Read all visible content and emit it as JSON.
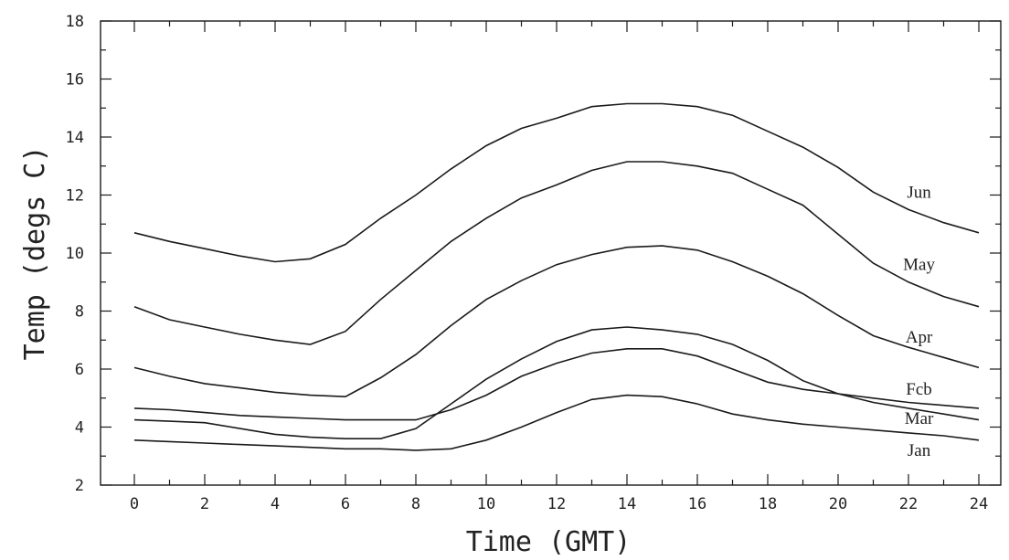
{
  "chart_data": {
    "type": "line",
    "xlabel": "Time (GMT)",
    "ylabel": "Temp (degs C)",
    "xlim": [
      -1,
      24.5
    ],
    "ylim": [
      2,
      18
    ],
    "xticks": [
      0,
      2,
      4,
      6,
      8,
      10,
      12,
      14,
      16,
      18,
      20,
      22,
      24
    ],
    "yticks": [
      2,
      4,
      6,
      8,
      10,
      12,
      14,
      16,
      18
    ],
    "grid": false,
    "x": [
      0,
      1,
      2,
      3,
      4,
      5,
      6,
      7,
      8,
      9,
      10,
      11,
      12,
      13,
      14,
      15,
      16,
      17,
      18,
      19,
      20,
      21,
      22,
      23,
      24
    ],
    "series": [
      {
        "name": "Jun",
        "values": [
          10.7,
          10.4,
          10.15,
          9.9,
          9.7,
          9.8,
          10.3,
          11.2,
          12.0,
          12.9,
          13.7,
          14.3,
          14.65,
          15.05,
          15.15,
          15.15,
          15.05,
          14.75,
          14.2,
          13.65,
          12.95,
          12.1,
          11.5,
          11.05,
          10.7
        ]
      },
      {
        "name": "May",
        "values": [
          8.15,
          7.7,
          7.45,
          7.2,
          7.0,
          6.85,
          7.3,
          8.4,
          9.4,
          10.4,
          11.2,
          11.9,
          12.35,
          12.85,
          13.15,
          13.15,
          13.0,
          12.75,
          12.2,
          11.65,
          10.65,
          9.65,
          9.0,
          8.5,
          8.15
        ]
      },
      {
        "name": "Apr",
        "values": [
          6.05,
          5.75,
          5.5,
          5.35,
          5.2,
          5.1,
          5.05,
          5.7,
          6.5,
          7.5,
          8.4,
          9.05,
          9.6,
          9.95,
          10.2,
          10.25,
          10.1,
          9.7,
          9.2,
          8.6,
          7.85,
          7.15,
          6.75,
          6.4,
          6.05
        ]
      },
      {
        "name": "Feb",
        "values": [
          4.65,
          4.6,
          4.5,
          4.4,
          4.35,
          4.3,
          4.25,
          4.25,
          4.25,
          4.6,
          5.1,
          5.75,
          6.2,
          6.55,
          6.7,
          6.7,
          6.45,
          6.0,
          5.55,
          5.3,
          5.15,
          5.0,
          4.85,
          4.75,
          4.65
        ]
      },
      {
        "name": "Mar",
        "values": [
          4.25,
          4.2,
          4.15,
          3.95,
          3.75,
          3.65,
          3.6,
          3.6,
          3.95,
          4.8,
          5.65,
          6.35,
          6.95,
          7.35,
          7.45,
          7.35,
          7.2,
          6.85,
          6.3,
          5.6,
          5.15,
          4.85,
          4.65,
          4.45,
          4.25
        ]
      },
      {
        "name": "Jan",
        "values": [
          3.55,
          3.5,
          3.45,
          3.4,
          3.35,
          3.3,
          3.25,
          3.25,
          3.2,
          3.25,
          3.55,
          4.0,
          4.5,
          4.95,
          5.1,
          5.05,
          4.8,
          4.45,
          4.25,
          4.1,
          4.0,
          3.9,
          3.8,
          3.7,
          3.55
        ]
      }
    ],
    "line_labels": [
      {
        "text": "Jun",
        "y": 12.1
      },
      {
        "text": "May",
        "y": 9.6
      },
      {
        "text": "Apr",
        "y": 7.1
      },
      {
        "text": "Fcb",
        "y": 5.3
      },
      {
        "text": "Mar",
        "y": 4.3
      },
      {
        "text": "Jan",
        "y": 3.2
      }
    ]
  }
}
